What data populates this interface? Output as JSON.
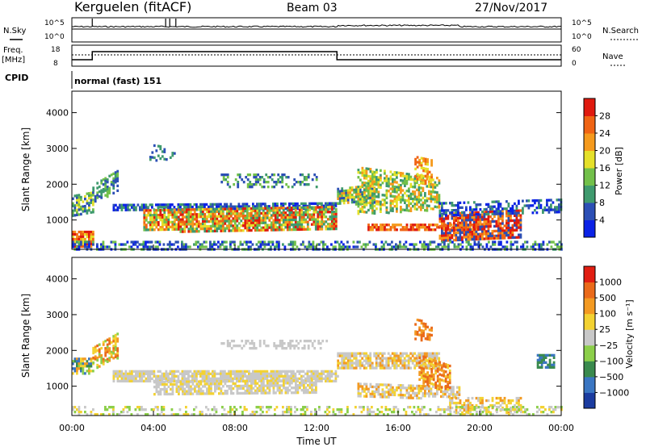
{
  "header": {
    "station": "Kerguelen (fitACF)",
    "beam": "Beam 03",
    "date": "27/Nov/2017"
  },
  "strip_labels": {
    "nsky": "N.Sky",
    "freq_top": "Freq.",
    "freq_unit": "[MHz]",
    "cpid": "CPID",
    "nsearch": "N.Search",
    "nave": "Nave"
  },
  "strip_ticks": {
    "noise_top": "10^5",
    "noise_bottom": "10^0",
    "freq_top": "18",
    "freq_bottom": "8",
    "nave_top": "60",
    "nave_bottom": "0"
  },
  "cpid_text": "normal (fast) 151",
  "chart_data": [
    {
      "type": "heatmap",
      "name": "power",
      "ylabel": "Slant Range [km]",
      "ylim": [
        180,
        4600
      ],
      "yticks": [
        "1000",
        "2000",
        "3000",
        "4000"
      ],
      "colorbar": {
        "label": "Power [dB]",
        "ticks": [
          "4",
          "8",
          "12",
          "16",
          "20",
          "24",
          "28"
        ],
        "colors": [
          "#0b22e6",
          "#2c4fb5",
          "#3f9a6e",
          "#72c04a",
          "#e5e02a",
          "#f59a1d",
          "#f06414",
          "#e01a0f"
        ]
      }
    },
    {
      "type": "heatmap",
      "name": "velocity",
      "ylabel": "Slant Range [km]",
      "xlabel": "Time UT",
      "ylim": [
        180,
        4600
      ],
      "yticks": [
        "1000",
        "2000",
        "3000",
        "4000"
      ],
      "xticks": [
        "00:00",
        "04:00",
        "08:00",
        "12:00",
        "16:00",
        "20:00",
        "00:00"
      ],
      "colorbar": {
        "label": "Velocity [m s⁻¹]",
        "ticks": [
          "1000",
          "500",
          "100",
          "25",
          "−25",
          "−100",
          "−500",
          "−1000"
        ],
        "colors": [
          "#1b3ca0",
          "#3a76c2",
          "#3a8a4e",
          "#8ccf4a",
          "#c8c8c8",
          "#f3d232",
          "#f39a22",
          "#ea6a1a",
          "#e11e12"
        ]
      }
    }
  ]
}
